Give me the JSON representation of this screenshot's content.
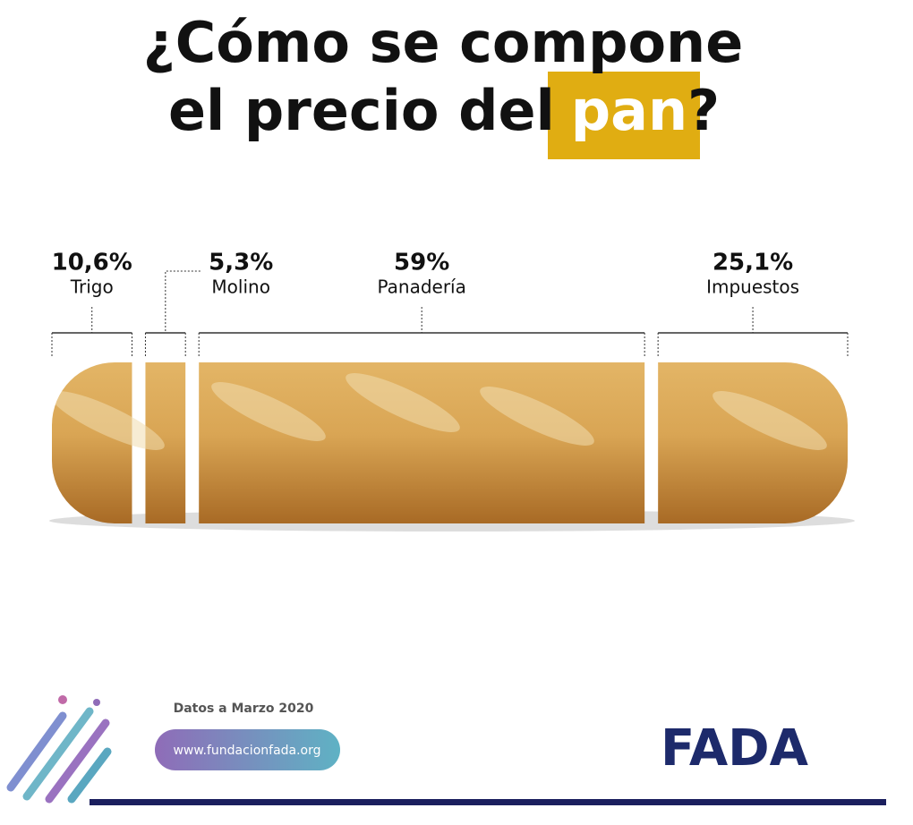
{
  "chart_data": {
    "type": "segmented-bar",
    "title": {
      "line1": "¿Cómo se compone",
      "line2": "el precio del",
      "highlight": "pan",
      "end": "?"
    },
    "categories": [
      "Trigo",
      "Molino",
      "Panadería",
      "Impuestos"
    ],
    "values": [
      10.6,
      5.3,
      59,
      25.1
    ],
    "value_labels": [
      "10,6%",
      "5,3%",
      "59%",
      "25,1%"
    ],
    "color": "#d39a4a"
  },
  "footer": {
    "note": "Datos a Marzo 2020",
    "url": "www.fundacionfada.org",
    "logo": "FADA"
  }
}
